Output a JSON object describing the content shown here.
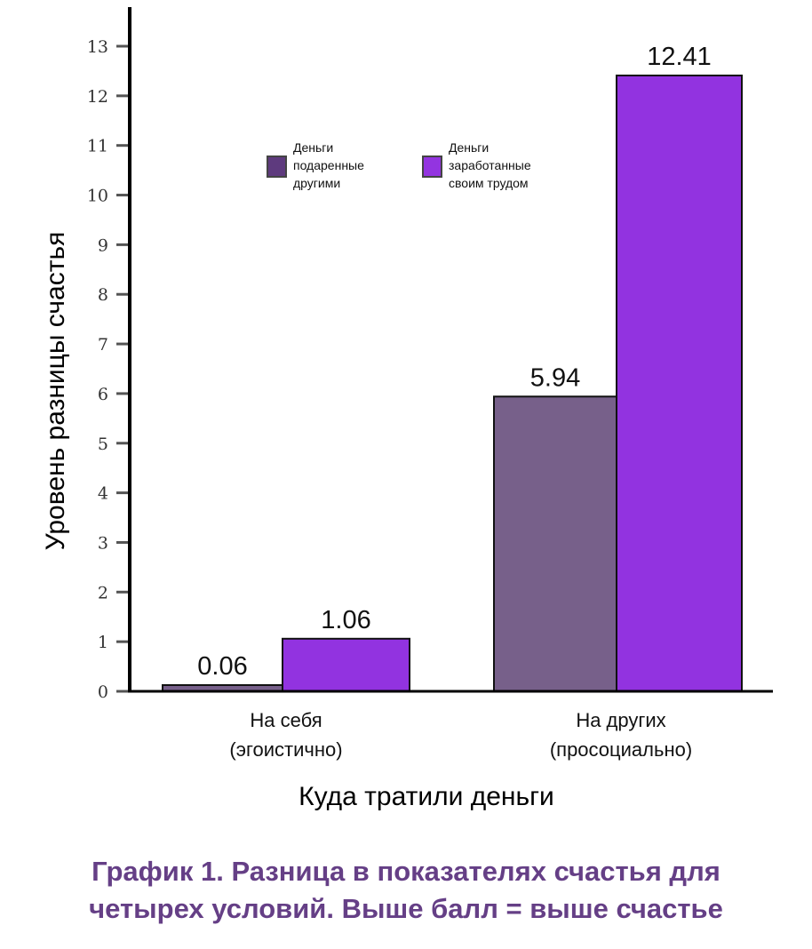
{
  "chart_data": {
    "type": "bar",
    "categories": [
      "На себя\n(эгоистично)",
      "На других\n(просоциально)"
    ],
    "series": [
      {
        "name": "Деньги подаренные другими",
        "values": [
          0.06,
          5.94
        ],
        "color": "#77608a",
        "legend_color": "#5e3a7e"
      },
      {
        "name": "Деньги заработанные своим трудом",
        "values": [
          1.06,
          12.41
        ],
        "color": "#9233e0",
        "legend_color": "#9334e0"
      }
    ],
    "data_labels": [
      [
        "0.06",
        "5.94"
      ],
      [
        "1.06",
        "12.41"
      ]
    ],
    "legend": [
      [
        "Деньги",
        "подаренные",
        "другими"
      ],
      [
        "Деньги",
        "заработанные",
        "своим трудом"
      ]
    ],
    "category_lines": [
      [
        "На себя",
        "(эгоистично)"
      ],
      [
        "На других",
        "(просоциально)"
      ]
    ],
    "xlabel": "Куда тратили деньги",
    "ylabel": "Уровень разницы счастья",
    "ylim": [
      0,
      13
    ],
    "yticks": [
      0,
      1,
      2,
      3,
      4,
      5,
      6,
      7,
      8,
      9,
      10,
      11,
      12,
      13
    ],
    "grid": false,
    "legend_placement": "top-center"
  },
  "caption": {
    "line1": "График 1. Разница в показателях счастья для",
    "line2": "четырех условий. Выше балл = выше счастье"
  }
}
